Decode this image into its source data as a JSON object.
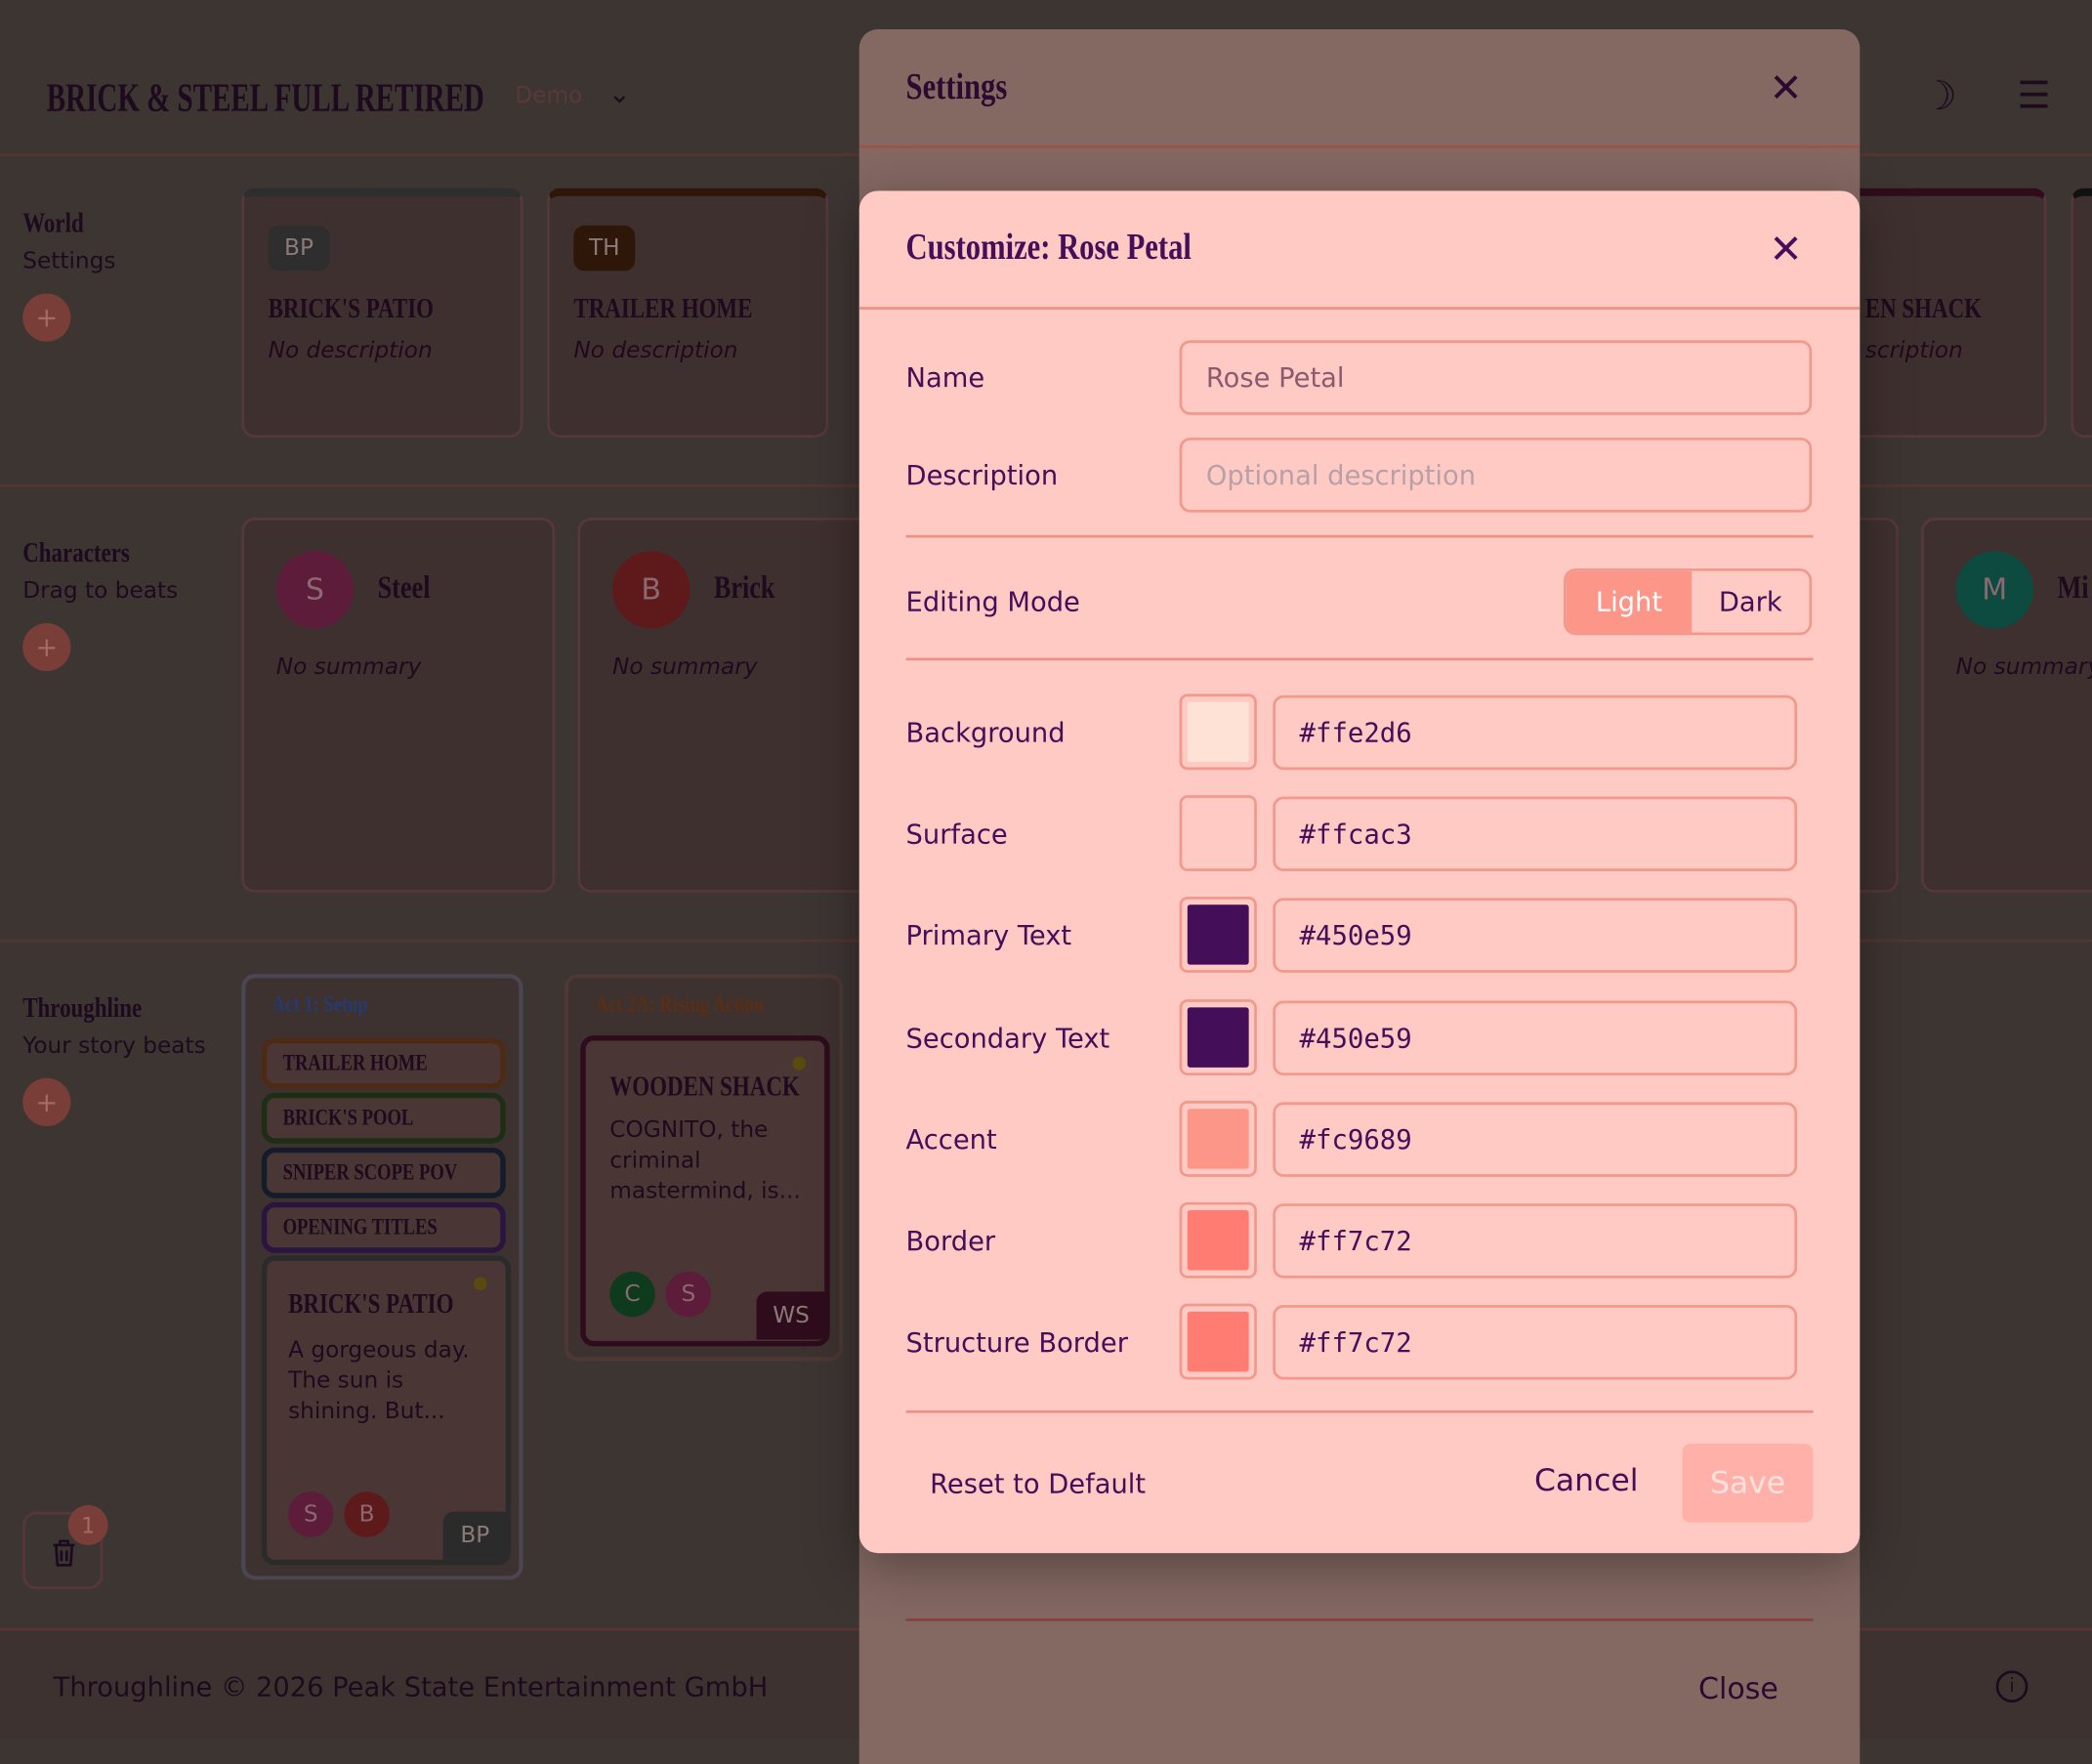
{
  "header": {
    "title": "BRICK & STEEL FULL RETIRED",
    "project_badge": "Demo"
  },
  "world": {
    "title": "World",
    "subtitle": "Settings",
    "cards": [
      {
        "initials": "BP",
        "name": "BRICK'S PATIO",
        "desc": "No description"
      },
      {
        "initials": "TH",
        "name": "TRAILER HOME",
        "desc": "No description"
      },
      {
        "name_partial": "EN SHACK",
        "desc_partial": "scription"
      }
    ]
  },
  "characters": {
    "title": "Characters",
    "subtitle": "Drag to beats",
    "cards": [
      {
        "initial": "S",
        "name": "Steel",
        "summary": "No summary"
      },
      {
        "initial": "B",
        "name": "Brick",
        "summary": "No summary"
      },
      {
        "initial": "M",
        "name_partial": "Mi",
        "summary": "No summary"
      }
    ]
  },
  "throughline": {
    "title": "Throughline",
    "subtitle": "Your story beats",
    "acts": [
      {
        "title": "Act 1: Setup",
        "beats": [
          "TRAILER HOME",
          "BRICK'S POOL",
          "SNIPER SCOPE POV",
          "OPENING TITLES"
        ],
        "card": {
          "title": "BRICK'S PATIO",
          "text": "A gorgeous day. The sun is shining. But...",
          "avatars": [
            "S",
            "B"
          ],
          "tag": "BP"
        }
      },
      {
        "title": "Act 2A: Rising Action",
        "card": {
          "title": "WOODEN SHACK",
          "text": "COGNITO, the criminal mastermind, is...",
          "avatars": [
            "C",
            "S"
          ],
          "tag": "WS"
        }
      }
    ]
  },
  "trash": {
    "count": "1"
  },
  "footer": {
    "text": "Throughline © 2026 Peak State Entertainment GmbH"
  },
  "settings": {
    "title": "Settings",
    "close_label": "Close"
  },
  "customize": {
    "title": "Customize: Rose Petal",
    "name_label": "Name",
    "name_value": "Rose Petal",
    "desc_label": "Description",
    "desc_placeholder": "Optional description",
    "mode_label": "Editing Mode",
    "mode_options": [
      "Light",
      "Dark"
    ],
    "mode_selected": "Light",
    "colors": [
      {
        "label": "Background",
        "hex": "#ffe2d6"
      },
      {
        "label": "Surface",
        "hex": "#ffcac3"
      },
      {
        "label": "Primary Text",
        "hex": "#450e59"
      },
      {
        "label": "Secondary Text",
        "hex": "#450e59"
      },
      {
        "label": "Accent",
        "hex": "#fc9689"
      },
      {
        "label": "Border",
        "hex": "#ff7c72"
      },
      {
        "label": "Structure Border",
        "hex": "#ff7c72"
      }
    ],
    "reset_label": "Reset to Default",
    "cancel_label": "Cancel",
    "save_label": "Save"
  }
}
